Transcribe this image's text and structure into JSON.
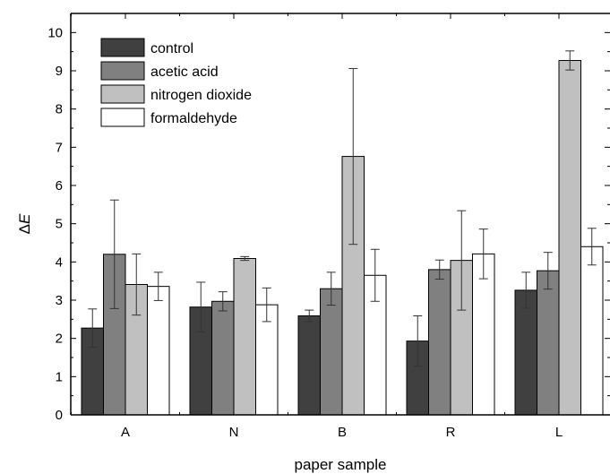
{
  "chart_data": {
    "type": "bar",
    "title": "",
    "xlabel": "paper sample",
    "ylabel": "ΔE",
    "ylabel_parts": {
      "delta": "Δ",
      "variable": "E"
    },
    "categories": [
      "A",
      "N",
      "B",
      "R",
      "L"
    ],
    "ylim": [
      0,
      10.5
    ],
    "yticks": [
      "0",
      "1",
      "2",
      "3",
      "4",
      "5",
      "6",
      "7",
      "8",
      "9",
      "10"
    ],
    "grid": false,
    "legend_position": "top-left",
    "error_bars": true,
    "series": [
      {
        "name": "control",
        "color": "#404040",
        "values": [
          2.27,
          2.82,
          2.59,
          1.93,
          3.26
        ],
        "errors": [
          0.5,
          0.65,
          0.15,
          0.66,
          0.47
        ]
      },
      {
        "name": "acetic acid",
        "color": "#808080",
        "values": [
          4.2,
          2.97,
          3.3,
          3.8,
          3.77
        ],
        "errors": [
          1.42,
          0.25,
          0.43,
          0.25,
          0.48
        ]
      },
      {
        "name": "nitrogen dioxide",
        "color": "#c0c0c0",
        "values": [
          3.41,
          4.09,
          6.76,
          4.04,
          9.27
        ],
        "errors": [
          0.8,
          0.05,
          2.3,
          1.3,
          0.25
        ]
      },
      {
        "name": "formaldehyde",
        "color": "#ffffff",
        "values": [
          3.36,
          2.88,
          3.65,
          4.21,
          4.4
        ],
        "errors": [
          0.37,
          0.44,
          0.68,
          0.65,
          0.48
        ]
      }
    ]
  }
}
